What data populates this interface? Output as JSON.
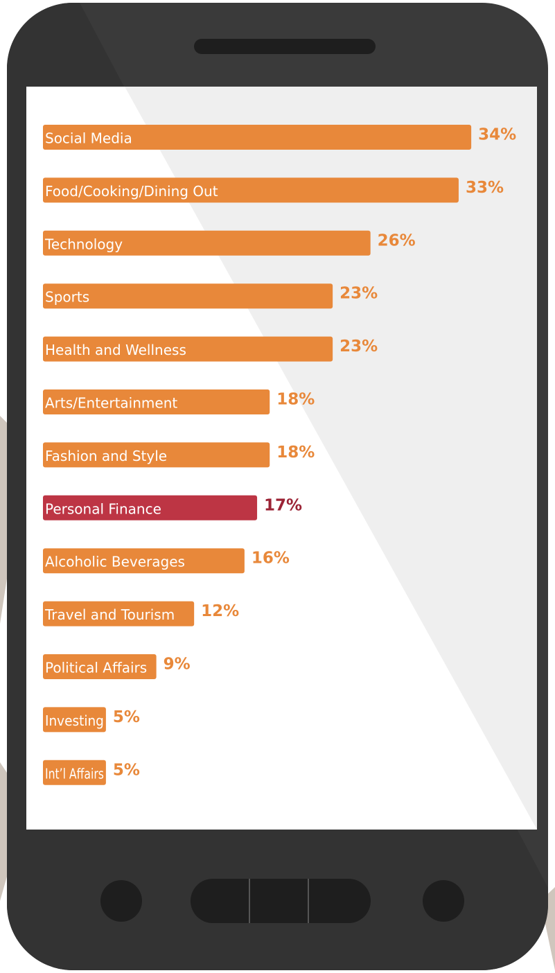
{
  "chart_data": {
    "type": "hbar",
    "categories": [
      "Social Media",
      "Food/Cooking/Dining Out",
      "Technology",
      "Sports",
      "Health and Wellness",
      "Arts/Entertainment",
      "Fashion and Style",
      "Personal Finance",
      "Alcoholic Beverages",
      "Travel and Tourism",
      "Political Affairs",
      "Investing",
      "Int’l Affairs"
    ],
    "values": [
      34,
      33,
      26,
      23,
      23,
      18,
      18,
      17,
      16,
      12,
      9,
      5,
      5
    ],
    "value_labels": [
      "34%",
      "33%",
      "26%",
      "23%",
      "23%",
      "18%",
      "18%",
      "17%",
      "16%",
      "12%",
      "9%",
      "5%",
      "5%"
    ],
    "colors": [
      "#e8883a",
      "#e8883a",
      "#e8883a",
      "#e8883a",
      "#e8883a",
      "#e8883a",
      "#e8883a",
      "#bd3544",
      "#e8883a",
      "#e8883a",
      "#e8883a",
      "#e8883a",
      "#e8883a"
    ],
    "value_label_colors": [
      "#e8883a",
      "#e8883a",
      "#e8883a",
      "#e8883a",
      "#e8883a",
      "#e8883a",
      "#e8883a",
      "#9b2335",
      "#e8883a",
      "#e8883a",
      "#e8883a",
      "#e8883a",
      "#e8883a"
    ]
  }
}
